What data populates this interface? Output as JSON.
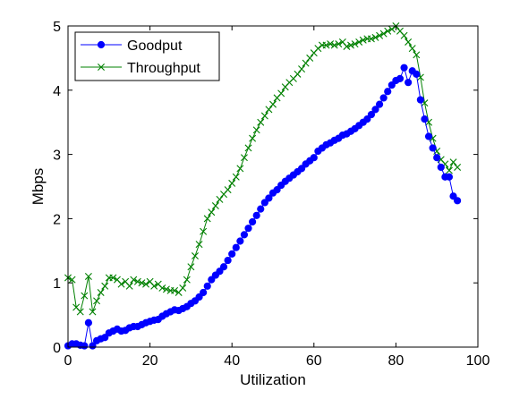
{
  "chart_data": {
    "type": "line",
    "xlabel": "Utilization",
    "ylabel": "Mbps",
    "xlim": [
      0,
      100
    ],
    "ylim": [
      0,
      5
    ],
    "xticks": [
      0,
      20,
      40,
      60,
      80,
      100
    ],
    "yticks": [
      0,
      1,
      2,
      3,
      4,
      5
    ],
    "grid": false,
    "legend_position": "top-left",
    "series": [
      {
        "name": "Goodput",
        "color": "#0000ff",
        "marker": "circle",
        "x": [
          0,
          1,
          2,
          3,
          4,
          5,
          6,
          7,
          8,
          9,
          10,
          11,
          12,
          13,
          14,
          15,
          16,
          17,
          18,
          19,
          20,
          21,
          22,
          23,
          24,
          25,
          26,
          27,
          28,
          29,
          30,
          31,
          32,
          33,
          34,
          35,
          36,
          37,
          38,
          39,
          40,
          41,
          42,
          43,
          44,
          45,
          46,
          47,
          48,
          49,
          50,
          51,
          52,
          53,
          54,
          55,
          56,
          57,
          58,
          59,
          60,
          61,
          62,
          63,
          64,
          65,
          66,
          67,
          68,
          69,
          70,
          71,
          72,
          73,
          74,
          75,
          76,
          77,
          78,
          79,
          80,
          81,
          82,
          83,
          84,
          85,
          86,
          87,
          88,
          89,
          90,
          91,
          92,
          93,
          94,
          95
        ],
        "y": [
          0.02,
          0.05,
          0.05,
          0.03,
          0.02,
          0.38,
          0.02,
          0.1,
          0.13,
          0.15,
          0.22,
          0.25,
          0.28,
          0.25,
          0.26,
          0.3,
          0.32,
          0.32,
          0.35,
          0.38,
          0.4,
          0.42,
          0.43,
          0.48,
          0.52,
          0.55,
          0.58,
          0.57,
          0.6,
          0.63,
          0.68,
          0.72,
          0.78,
          0.85,
          0.95,
          1.05,
          1.12,
          1.18,
          1.25,
          1.35,
          1.45,
          1.55,
          1.65,
          1.75,
          1.85,
          1.95,
          2.05,
          2.15,
          2.25,
          2.32,
          2.4,
          2.45,
          2.52,
          2.58,
          2.63,
          2.68,
          2.73,
          2.78,
          2.85,
          2.9,
          2.95,
          3.05,
          3.1,
          3.15,
          3.18,
          3.22,
          3.25,
          3.3,
          3.32,
          3.36,
          3.4,
          3.45,
          3.5,
          3.55,
          3.62,
          3.7,
          3.78,
          3.88,
          3.98,
          4.08,
          4.15,
          4.18,
          4.35,
          4.12,
          4.3,
          4.25,
          3.85,
          3.55,
          3.28,
          3.1,
          2.95,
          2.8,
          2.65,
          2.65,
          2.35,
          2.28
        ]
      },
      {
        "name": "Throughput",
        "color": "#008000",
        "marker": "x",
        "x": [
          0,
          1,
          2,
          3,
          4,
          5,
          6,
          7,
          8,
          9,
          10,
          11,
          12,
          13,
          14,
          15,
          16,
          17,
          18,
          19,
          20,
          21,
          22,
          23,
          24,
          25,
          26,
          27,
          28,
          29,
          30,
          31,
          32,
          33,
          34,
          35,
          36,
          37,
          38,
          39,
          40,
          41,
          42,
          43,
          44,
          45,
          46,
          47,
          48,
          49,
          50,
          51,
          52,
          53,
          54,
          55,
          56,
          57,
          58,
          59,
          60,
          61,
          62,
          63,
          64,
          65,
          66,
          67,
          68,
          69,
          70,
          71,
          72,
          73,
          74,
          75,
          76,
          77,
          78,
          79,
          80,
          81,
          82,
          83,
          84,
          85,
          86,
          87,
          88,
          89,
          90,
          91,
          92,
          93,
          94,
          95
        ],
        "y": [
          1.08,
          1.05,
          0.62,
          0.55,
          0.8,
          1.1,
          0.55,
          0.72,
          0.85,
          0.95,
          1.08,
          1.08,
          1.05,
          0.98,
          1.02,
          0.95,
          1.05,
          1.02,
          1.0,
          0.98,
          1.02,
          0.95,
          0.98,
          0.92,
          0.9,
          0.88,
          0.88,
          0.85,
          0.92,
          1.05,
          1.25,
          1.42,
          1.6,
          1.8,
          2.0,
          2.1,
          2.2,
          2.3,
          2.38,
          2.45,
          2.55,
          2.65,
          2.78,
          2.95,
          3.1,
          3.25,
          3.38,
          3.5,
          3.6,
          3.7,
          3.78,
          3.88,
          3.95,
          4.05,
          4.12,
          4.18,
          4.25,
          4.33,
          4.42,
          4.5,
          4.58,
          4.65,
          4.7,
          4.7,
          4.72,
          4.7,
          4.72,
          4.75,
          4.68,
          4.7,
          4.72,
          4.75,
          4.78,
          4.8,
          4.8,
          4.82,
          4.85,
          4.88,
          4.92,
          4.95,
          5.0,
          4.92,
          4.85,
          4.75,
          4.65,
          4.55,
          4.2,
          3.8,
          3.5,
          3.25,
          3.05,
          2.92,
          2.85,
          2.75,
          2.88,
          2.8
        ]
      }
    ]
  }
}
